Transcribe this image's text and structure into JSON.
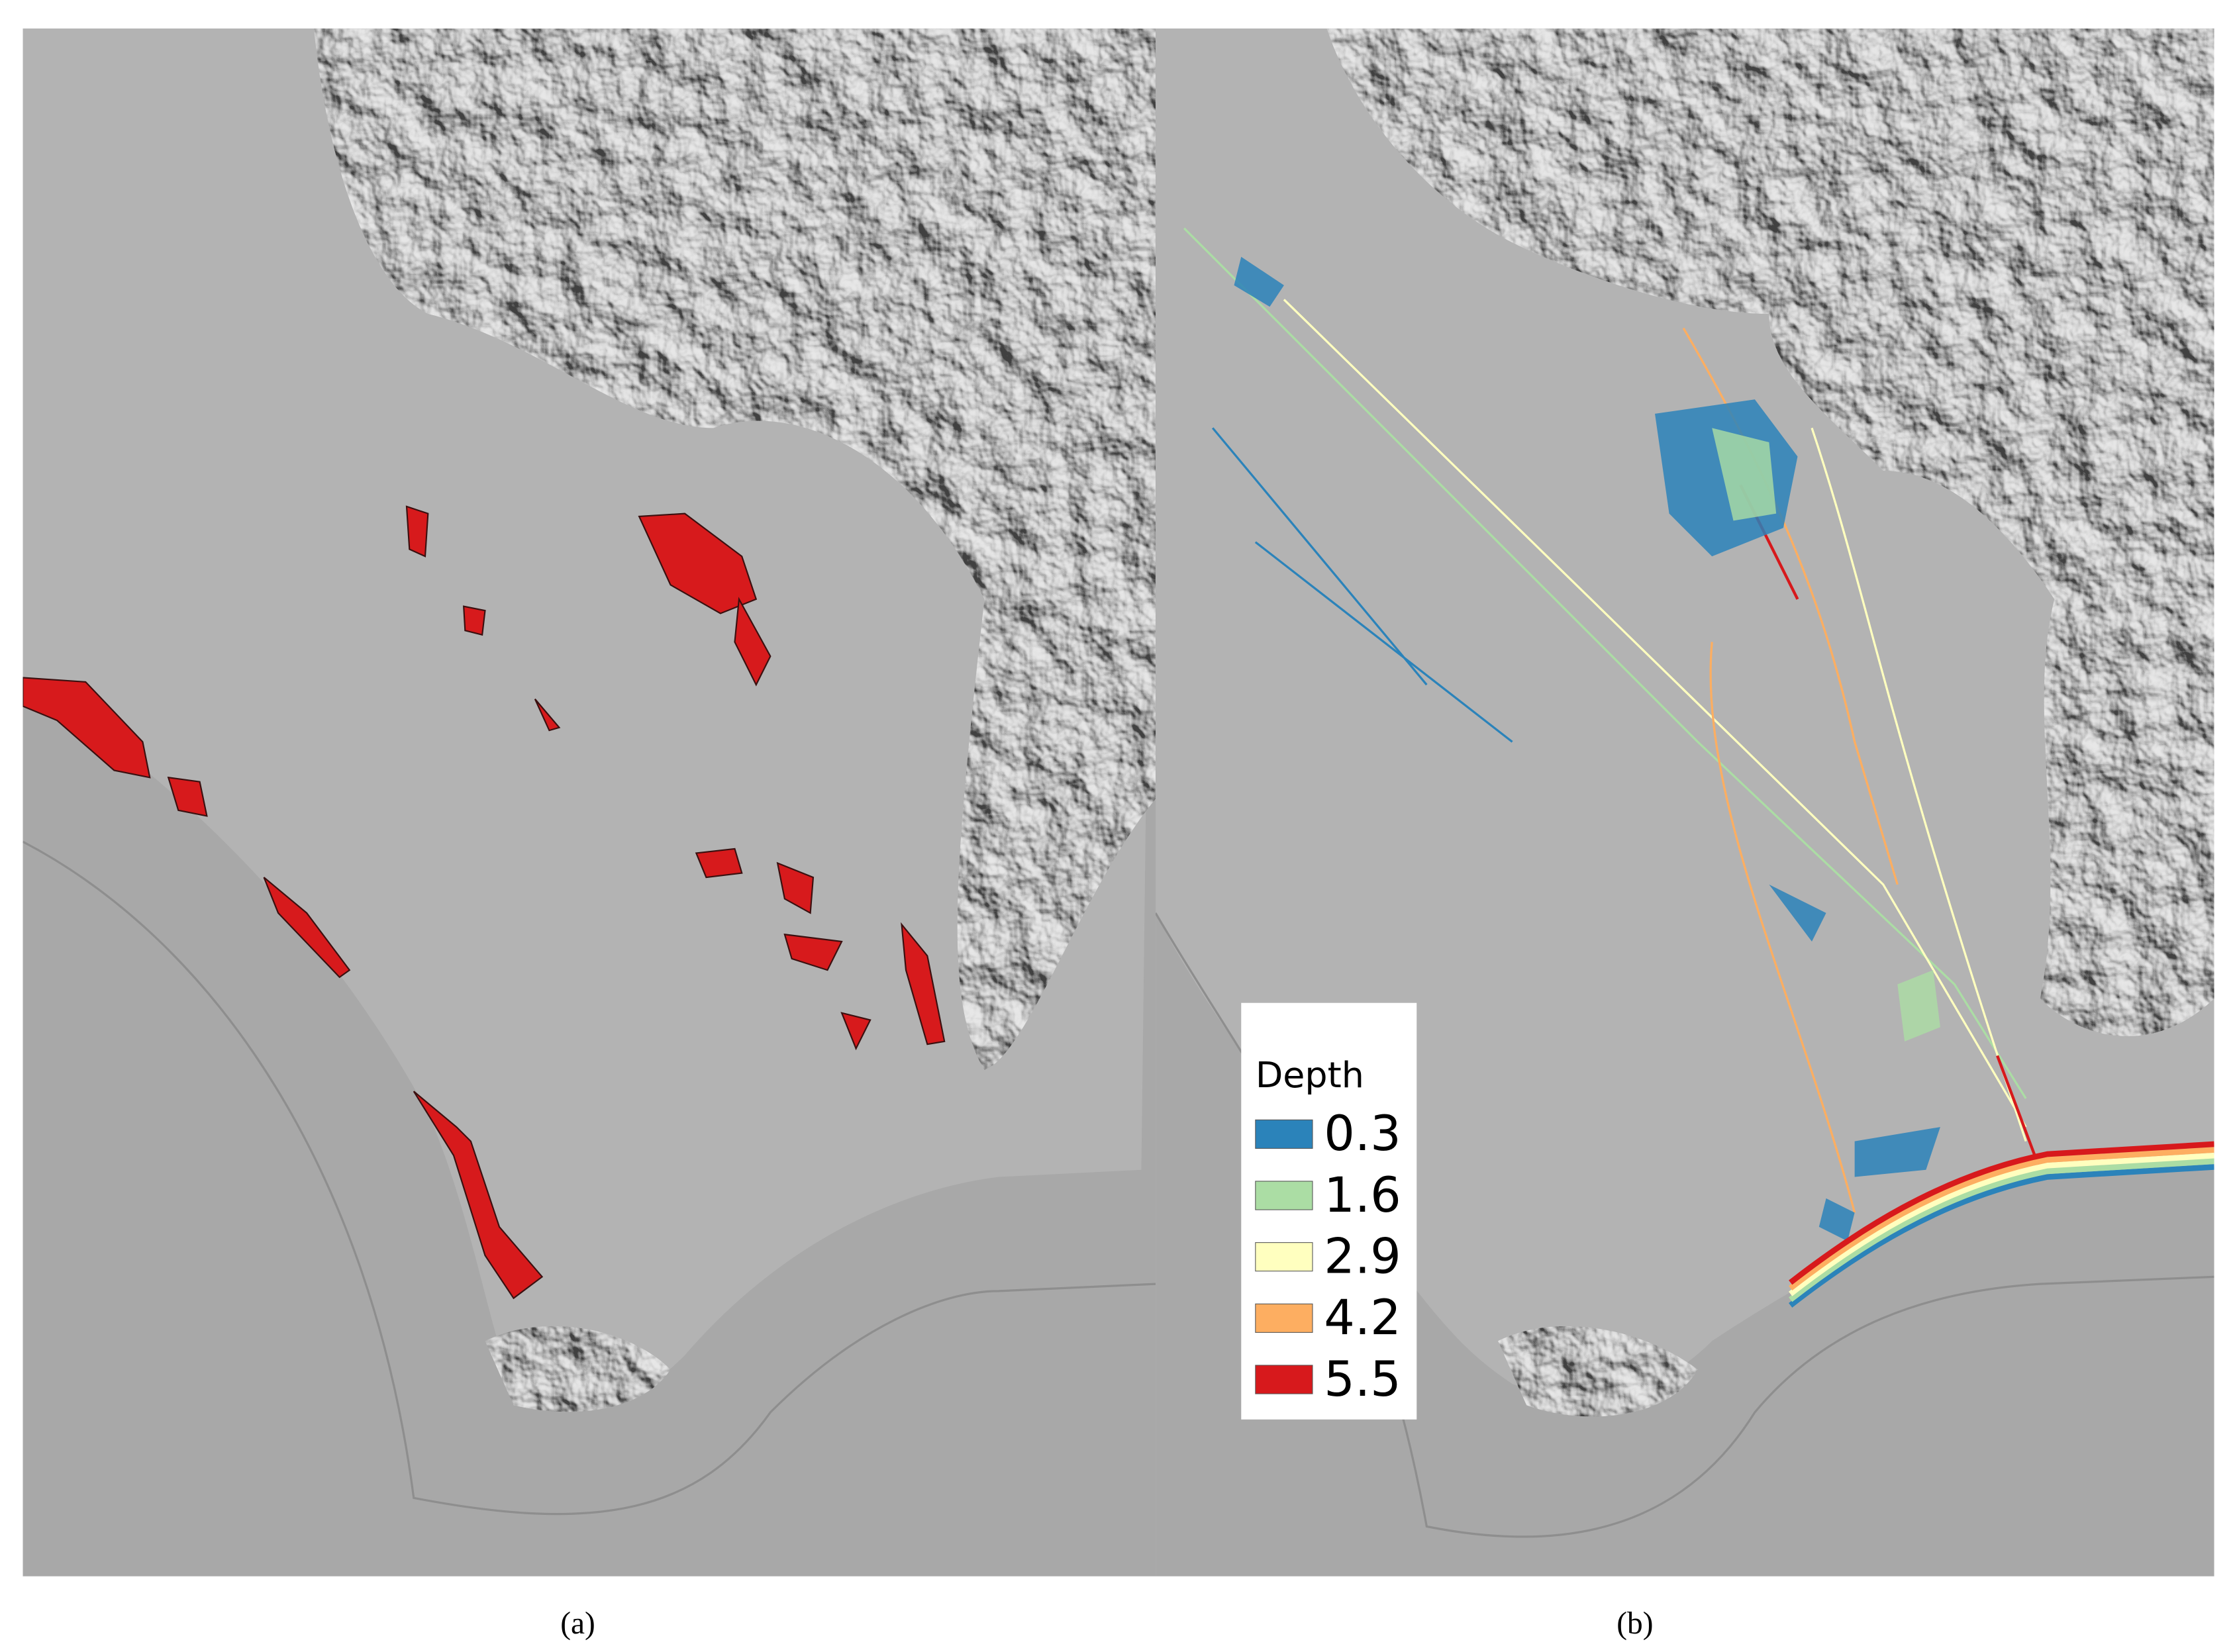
{
  "panels": [
    {
      "caption": "(a)"
    },
    {
      "caption": "(b)"
    }
  ],
  "legend": {
    "title": "Depth",
    "items": [
      {
        "label": 0.3,
        "color": "#2b83ba"
      },
      {
        "label": 1.6,
        "color": "#abdda4"
      },
      {
        "label": 2.9,
        "color": "#ffffbf"
      },
      {
        "label": 4.2,
        "color": "#fdae61"
      },
      {
        "label": 5.5,
        "color": "#d7191c"
      }
    ]
  }
}
